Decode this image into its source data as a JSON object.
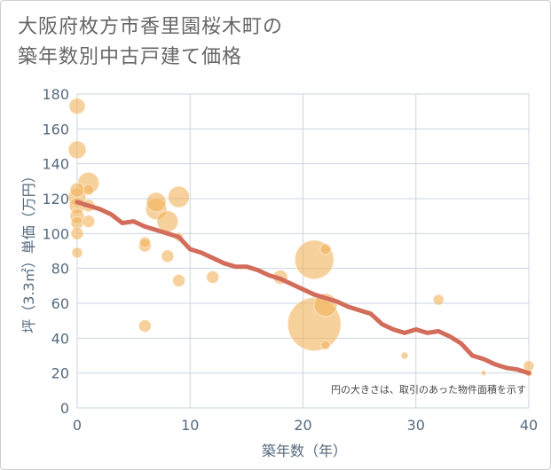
{
  "title_line1": "大阪府枚方市香里園桜木町の",
  "title_line2": "築年数別中古戸建て価格",
  "colors": {
    "line": "#d36d5b",
    "bubble": "#f2b35a",
    "grid": "#c9d5e0",
    "axis_text": "#556b7f"
  },
  "chart_data": {
    "type": "scatter",
    "title": "大阪府枚方市香里園桜木町の築年数別中古戸建て価格",
    "xlabel": "築年数（年）",
    "ylabel": "坪（3.3㎡）単価（万円）",
    "xlim": [
      0,
      40
    ],
    "ylim": [
      0,
      180
    ],
    "xticks": [
      0,
      10,
      20,
      30,
      40
    ],
    "yticks": [
      0,
      20,
      40,
      60,
      80,
      100,
      120,
      140,
      160,
      180
    ],
    "grid": true,
    "annotation": "円の大きさは、取引のあった物件面積を示す",
    "bubbles": [
      {
        "x": 0,
        "y": 173,
        "s": 9
      },
      {
        "x": 0,
        "y": 148,
        "s": 10
      },
      {
        "x": 0,
        "y": 125,
        "s": 8
      },
      {
        "x": 0,
        "y": 121,
        "s": 10
      },
      {
        "x": 0,
        "y": 116,
        "s": 9
      },
      {
        "x": 0,
        "y": 110,
        "s": 8
      },
      {
        "x": 0,
        "y": 106,
        "s": 7
      },
      {
        "x": 0,
        "y": 100,
        "s": 7
      },
      {
        "x": 0,
        "y": 89,
        "s": 6
      },
      {
        "x": 1,
        "y": 129,
        "s": 12
      },
      {
        "x": 1,
        "y": 125,
        "s": 6
      },
      {
        "x": 1,
        "y": 116,
        "s": 7
      },
      {
        "x": 1,
        "y": 107,
        "s": 7
      },
      {
        "x": 6,
        "y": 95,
        "s": 6
      },
      {
        "x": 6,
        "y": 93,
        "s": 7
      },
      {
        "x": 6,
        "y": 47,
        "s": 7
      },
      {
        "x": 7,
        "y": 118,
        "s": 11
      },
      {
        "x": 7,
        "y": 114,
        "s": 12
      },
      {
        "x": 8,
        "y": 107,
        "s": 12
      },
      {
        "x": 8,
        "y": 87,
        "s": 7
      },
      {
        "x": 9,
        "y": 121,
        "s": 12
      },
      {
        "x": 9,
        "y": 98,
        "s": 5
      },
      {
        "x": 9,
        "y": 73,
        "s": 7
      },
      {
        "x": 12,
        "y": 75,
        "s": 7
      },
      {
        "x": 18,
        "y": 75,
        "s": 8
      },
      {
        "x": 21,
        "y": 85,
        "s": 22
      },
      {
        "x": 21,
        "y": 48,
        "s": 30
      },
      {
        "x": 22,
        "y": 91,
        "s": 6
      },
      {
        "x": 22,
        "y": 59,
        "s": 13
      },
      {
        "x": 22,
        "y": 36,
        "s": 5
      },
      {
        "x": 29,
        "y": 30,
        "s": 4
      },
      {
        "x": 32,
        "y": 62,
        "s": 6
      },
      {
        "x": 36,
        "y": 20,
        "s": 3
      },
      {
        "x": 40,
        "y": 24,
        "s": 6
      },
      {
        "x": 40,
        "y": 20,
        "s": 4
      }
    ],
    "series": [
      {
        "name": "trend",
        "x": [
          0,
          1,
          2,
          3,
          4,
          5,
          6,
          7,
          8,
          9,
          10,
          11,
          12,
          13,
          14,
          15,
          16,
          17,
          18,
          19,
          20,
          21,
          22,
          23,
          24,
          25,
          26,
          27,
          28,
          29,
          30,
          31,
          32,
          33,
          34,
          35,
          36,
          37,
          38,
          39,
          40
        ],
        "values": [
          118,
          116,
          114,
          111,
          106,
          107,
          104,
          102,
          100,
          98,
          91,
          89,
          86,
          83,
          81,
          81,
          79,
          76,
          74,
          71,
          68,
          65,
          63,
          61,
          58,
          56,
          54,
          48,
          45,
          43,
          45,
          43,
          44,
          41,
          37,
          30,
          28,
          25,
          23,
          22,
          20
        ]
      }
    ]
  }
}
